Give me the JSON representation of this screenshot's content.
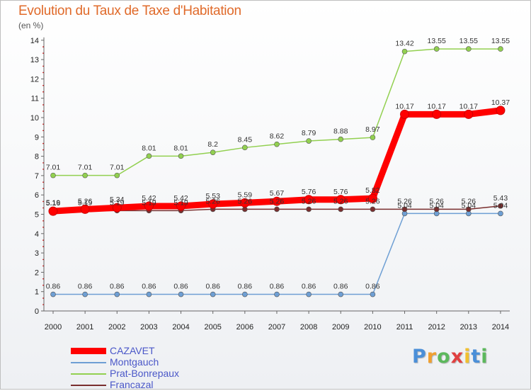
{
  "header": {
    "title": "Evolution du Taux de Taxe d'Habitation",
    "unit": "(en %)"
  },
  "chart_data": {
    "type": "line",
    "title": "Evolution du Taux de Taxe d'Habitation",
    "ylabel": "(en %)",
    "xlabel": "",
    "ylim": [
      0,
      14
    ],
    "grid": false,
    "legend_position": "bottom-left",
    "x": [
      "2000",
      "2001",
      "2002",
      "2003",
      "2004",
      "2005",
      "2006",
      "2007",
      "2008",
      "2009",
      "2010",
      "2011",
      "2012",
      "2013",
      "2014"
    ],
    "y_ticks": [
      "0",
      "1",
      "2",
      "3",
      "4",
      "5",
      "6",
      "7",
      "8",
      "9",
      "10",
      "11",
      "12",
      "13",
      "14"
    ],
    "series": [
      {
        "name": "CAZAVET",
        "color": "#ff0000",
        "values": [
          5.16,
          5.26,
          5.34,
          5.42,
          5.42,
          5.53,
          5.59,
          5.67,
          5.76,
          5.76,
          5.82,
          10.17,
          10.17,
          10.17,
          10.37
        ],
        "labels": [
          "5.16",
          "5.26",
          "5.34",
          "5.42",
          "5.42",
          "5.53",
          "5.59",
          "5.67",
          "5.76",
          "5.76",
          "5.82",
          "10.17",
          "10.17",
          "10.17",
          "10.37"
        ]
      },
      {
        "name": "Montgauch",
        "color": "#6e9fd4",
        "values": [
          0.86,
          0.86,
          0.86,
          0.86,
          0.86,
          0.86,
          0.86,
          0.86,
          0.86,
          0.86,
          0.86,
          5.04,
          5.04,
          5.04,
          5.04
        ],
        "labels": [
          "0.86",
          "0.86",
          "0.86",
          "0.86",
          "0.86",
          "0.86",
          "0.86",
          "0.86",
          "0.86",
          "0.86",
          "0.86",
          "5.04",
          "5.04",
          "5.04",
          "5.04"
        ]
      },
      {
        "name": "Prat-Bonrepaux",
        "color": "#92d050",
        "values": [
          7.01,
          7.01,
          7.01,
          8.01,
          8.01,
          8.2,
          8.45,
          8.62,
          8.79,
          8.88,
          8.97,
          13.42,
          13.55,
          13.55,
          13.55
        ],
        "labels": [
          "7.01",
          "7.01",
          "7.01",
          "8.01",
          "8.01",
          "8.2",
          "8.45",
          "8.62",
          "8.79",
          "8.88",
          "8.97",
          "13.42",
          "13.55",
          "13.55",
          "13.55"
        ]
      },
      {
        "name": "Francazal",
        "color": "#7a2e2e",
        "values": [
          5.19,
          5.19,
          5.19,
          5.19,
          5.19,
          5.26,
          5.26,
          5.26,
          5.26,
          5.26,
          5.26,
          5.26,
          5.26,
          5.26,
          5.43
        ],
        "labels": [
          "5.19",
          "5.19",
          "5.19",
          "5.19",
          "5.19",
          "5.26",
          "5.26",
          "5.26",
          "5.26",
          "5.26",
          "5.26",
          "5.26",
          "5.26",
          "5.26",
          "5.43"
        ]
      }
    ]
  },
  "legend": [
    {
      "label": "CAZAVET",
      "color": "#ff0000",
      "weight": "thick"
    },
    {
      "label": "Montgauch",
      "color": "#6e9fd4",
      "weight": "thin"
    },
    {
      "label": "Prat-Bonrepaux",
      "color": "#92d050",
      "weight": "thin"
    },
    {
      "label": "Francazal",
      "color": "#7a2e2e",
      "weight": "thin"
    }
  ],
  "logo": {
    "text": "Proxiti",
    "letters": [
      "P",
      "r",
      "o",
      "x",
      "i",
      "t",
      "i"
    ],
    "colors": [
      "#4a8fd8",
      "#f0a030",
      "#5cb85c",
      "#e04040",
      "#f0c030",
      "#4a8fd8",
      "#5cb85c"
    ]
  }
}
